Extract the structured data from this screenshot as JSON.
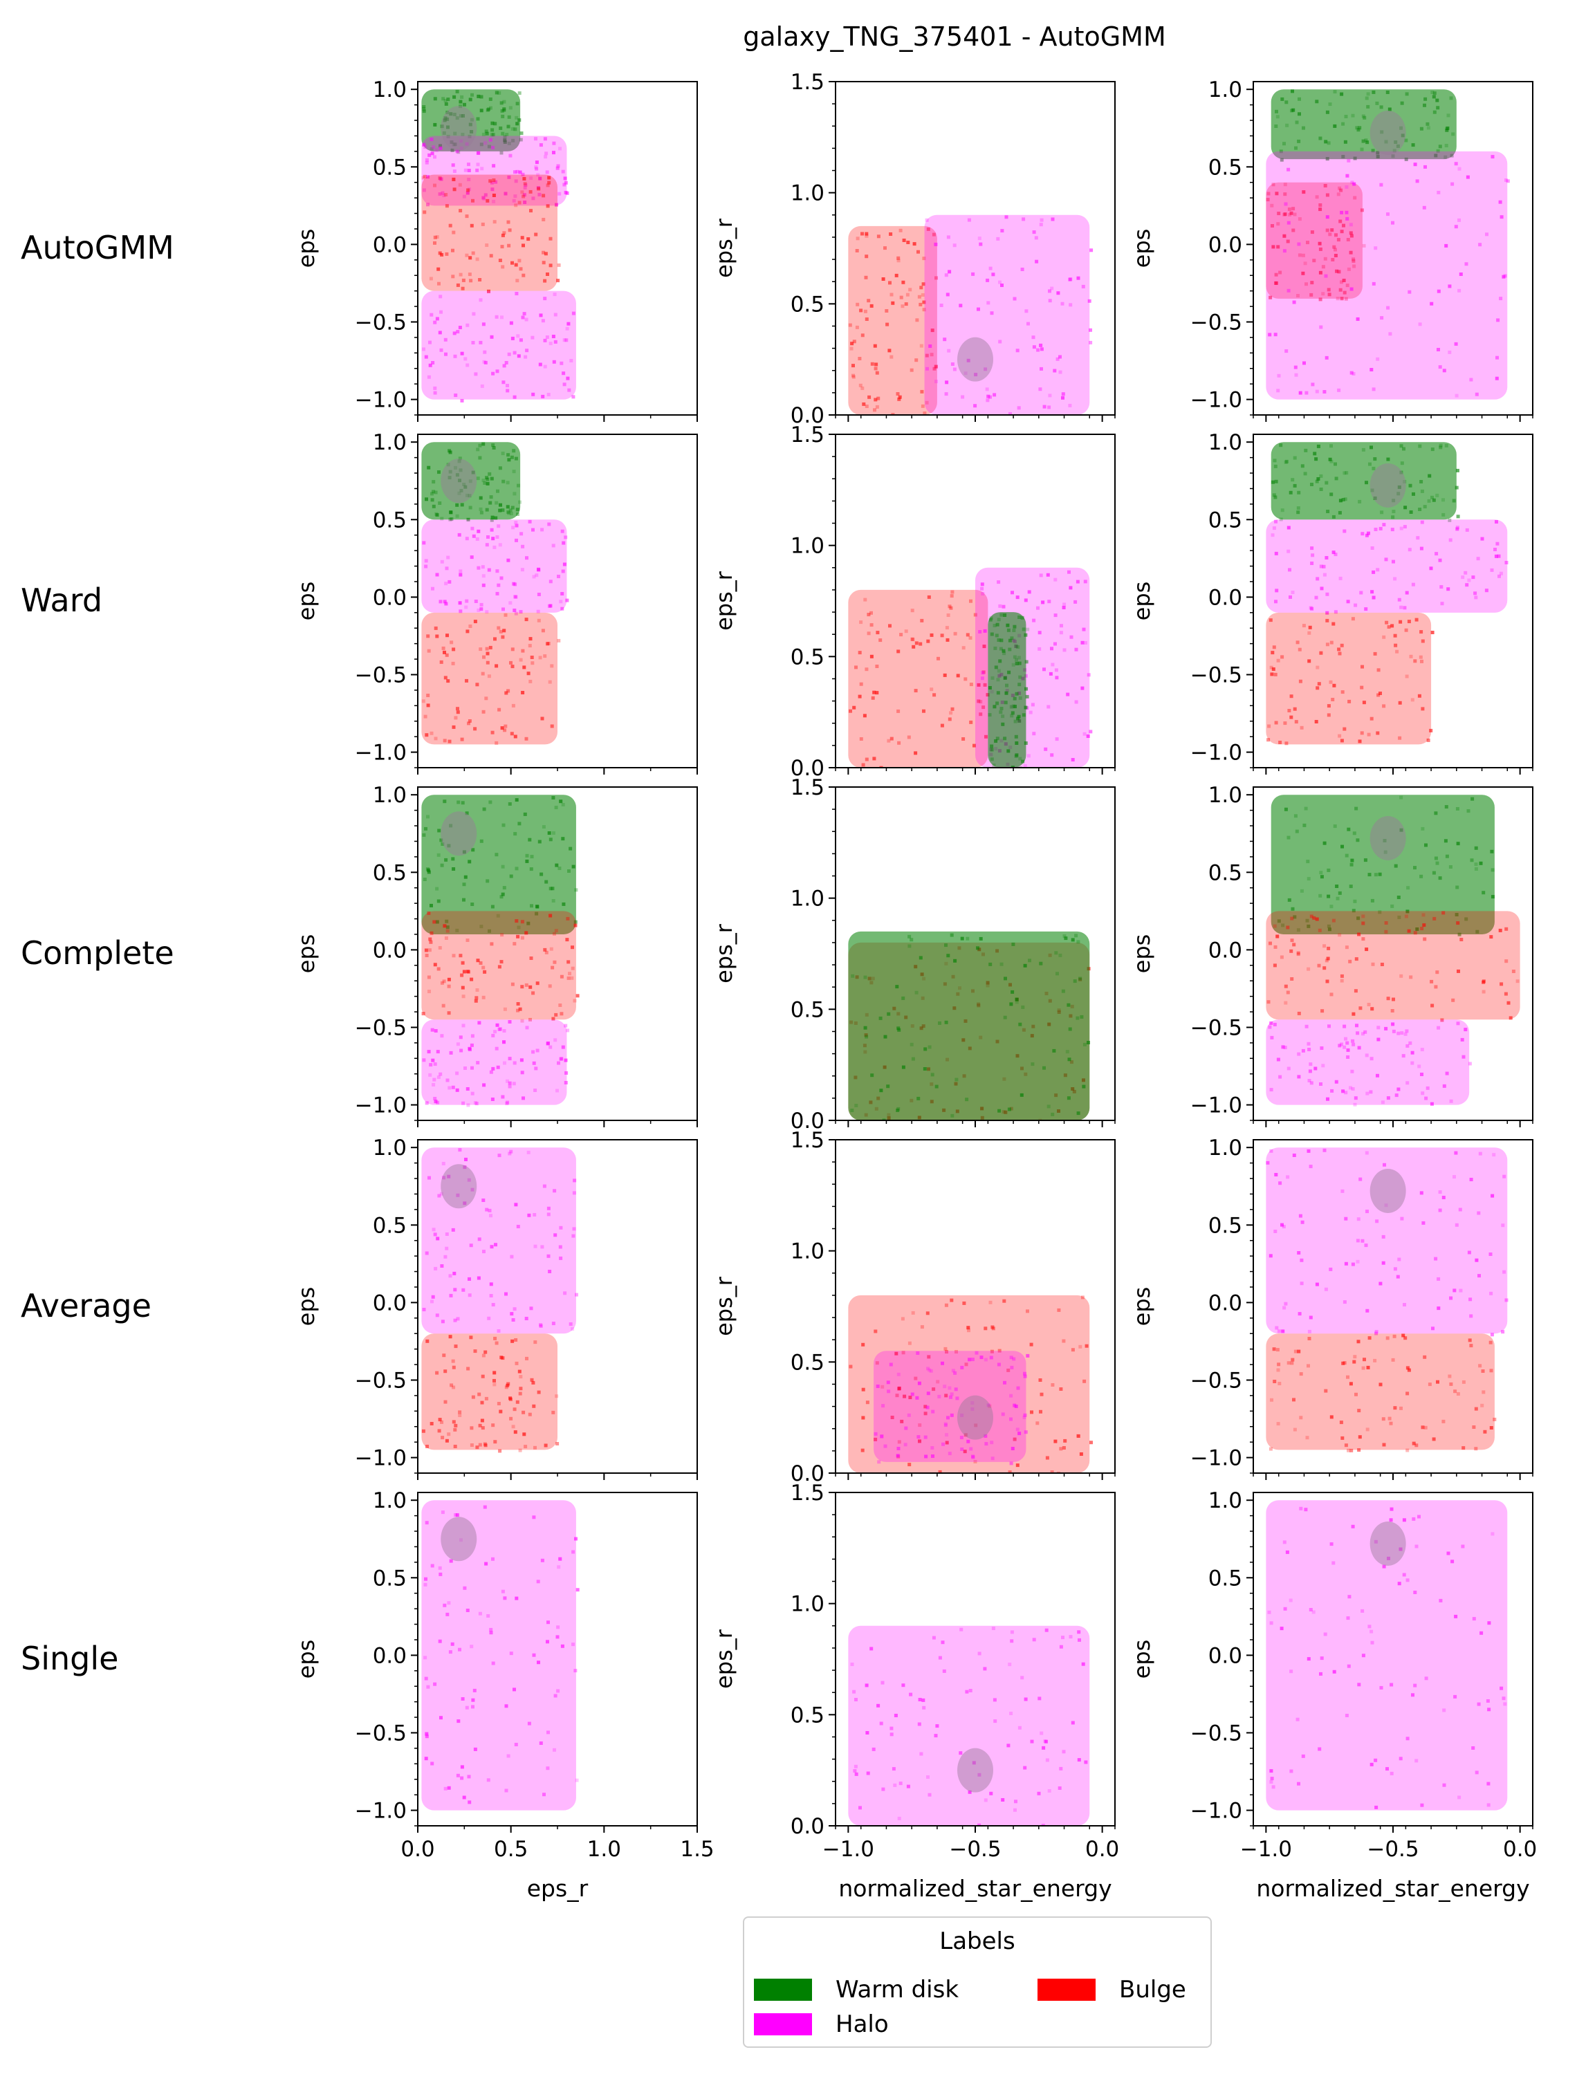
{
  "figure": {
    "title": "galaxy_TNG_375401 - AutoGMM",
    "row_labels": [
      "AutoGMM",
      "Ward",
      "Complete",
      "Average",
      "Single"
    ],
    "columns": [
      {
        "xlabel": "eps_r",
        "ylabel": "eps"
      },
      {
        "xlabel": "normalized_star_energy",
        "ylabel": "eps_r"
      },
      {
        "xlabel": "normalized_star_energy",
        "ylabel": "eps"
      }
    ]
  },
  "legend": {
    "title": "Labels",
    "entries": [
      {
        "label": "Warm disk",
        "color": "#008000"
      },
      {
        "label": "Bulge",
        "color": "#ff0000"
      },
      {
        "label": "Halo",
        "color": "#ff00ff"
      }
    ]
  },
  "colors": {
    "warm_disk": "#008000",
    "halo": "#ff00ff",
    "bulge": "#ff0000",
    "grid_density_overlap": "#9a7a9a"
  },
  "chart_data": {
    "type": "heatmap",
    "title": "galaxy_TNG_375401 - AutoGMM",
    "description_of_axes": {
      "col1": {
        "x": "eps_r",
        "y": "eps",
        "xlim": [
          0.0,
          1.5
        ],
        "ylim": [
          -1.1,
          1.05
        ],
        "xticks": [
          "0.0",
          "0.5",
          "1.0",
          "1.5"
        ],
        "yticks": [
          "-1.0",
          "-0.5",
          "0.0",
          "0.5",
          "1.0"
        ]
      },
      "col2": {
        "x": "normalized_star_energy",
        "y": "eps_r",
        "xlim": [
          -1.05,
          0.05
        ],
        "ylim": [
          0.0,
          1.5
        ],
        "xticks": [
          "-1.0",
          "-0.5",
          "0.0"
        ],
        "yticks": [
          "0.0",
          "0.5",
          "1.0",
          "1.5"
        ]
      },
      "col3": {
        "x": "normalized_star_energy",
        "y": "eps",
        "xlim": [
          -1.05,
          0.05
        ],
        "ylim": [
          -1.1,
          1.05
        ],
        "xticks": [
          "-1.0",
          "-0.5",
          "0.0"
        ],
        "yticks": [
          "-1.0",
          "-0.5",
          "0.0",
          "0.5",
          "1.0"
        ]
      }
    },
    "panels": [
      {
        "row": "AutoGMM",
        "regions": [
          [
            {
              "c": "warm_disk",
              "x": [
                0.02,
                0.55
              ],
              "y": [
                0.6,
                1.0
              ]
            },
            {
              "c": "halo",
              "x": [
                0.02,
                0.8
              ],
              "y": [
                0.25,
                0.7
              ]
            },
            {
              "c": "bulge",
              "x": [
                0.02,
                0.75
              ],
              "y": [
                -0.3,
                0.45
              ]
            },
            {
              "c": "halo",
              "x": [
                0.02,
                0.85
              ],
              "y": [
                -1.0,
                -0.3
              ]
            }
          ],
          [
            {
              "c": "bulge",
              "x": [
                -1.0,
                -0.65
              ],
              "y": [
                0.0,
                0.85
              ]
            },
            {
              "c": "halo",
              "x": [
                -0.7,
                -0.05
              ],
              "y": [
                0.0,
                0.9
              ]
            }
          ],
          [
            {
              "c": "warm_disk",
              "x": [
                -0.98,
                -0.25
              ],
              "y": [
                0.55,
                1.0
              ]
            },
            {
              "c": "bulge",
              "x": [
                -1.0,
                -0.62
              ],
              "y": [
                -0.35,
                0.4
              ]
            },
            {
              "c": "halo",
              "x": [
                -1.0,
                -0.05
              ],
              "y": [
                -1.0,
                0.6
              ]
            }
          ]
        ]
      },
      {
        "row": "Ward",
        "regions": [
          [
            {
              "c": "warm_disk",
              "x": [
                0.02,
                0.55
              ],
              "y": [
                0.5,
                1.0
              ]
            },
            {
              "c": "halo",
              "x": [
                0.02,
                0.8
              ],
              "y": [
                -0.1,
                0.5
              ]
            },
            {
              "c": "bulge",
              "x": [
                0.02,
                0.75
              ],
              "y": [
                -0.95,
                -0.1
              ]
            }
          ],
          [
            {
              "c": "bulge",
              "x": [
                -1.0,
                -0.45
              ],
              "y": [
                0.0,
                0.8
              ]
            },
            {
              "c": "halo",
              "x": [
                -0.5,
                -0.05
              ],
              "y": [
                0.0,
                0.9
              ]
            },
            {
              "c": "warm_disk",
              "x": [
                -0.45,
                -0.3
              ],
              "y": [
                0.0,
                0.7
              ]
            }
          ],
          [
            {
              "c": "warm_disk",
              "x": [
                -0.98,
                -0.25
              ],
              "y": [
                0.5,
                1.0
              ]
            },
            {
              "c": "halo",
              "x": [
                -1.0,
                -0.05
              ],
              "y": [
                -0.1,
                0.5
              ]
            },
            {
              "c": "bulge",
              "x": [
                -1.0,
                -0.35
              ],
              "y": [
                -0.95,
                -0.1
              ]
            }
          ]
        ]
      },
      {
        "row": "Complete",
        "regions": [
          [
            {
              "c": "warm_disk",
              "x": [
                0.02,
                0.85
              ],
              "y": [
                0.1,
                1.0
              ]
            },
            {
              "c": "bulge",
              "x": [
                0.02,
                0.85
              ],
              "y": [
                -0.45,
                0.25
              ]
            },
            {
              "c": "halo",
              "x": [
                0.02,
                0.8
              ],
              "y": [
                -1.0,
                -0.45
              ]
            }
          ],
          [
            {
              "c": "bulge",
              "x": [
                -1.0,
                -0.05
              ],
              "y": [
                0.0,
                0.8
              ]
            },
            {
              "c": "warm_disk",
              "x": [
                -1.0,
                -0.05
              ],
              "y": [
                0.0,
                0.85
              ]
            }
          ],
          [
            {
              "c": "warm_disk",
              "x": [
                -0.98,
                -0.1
              ],
              "y": [
                0.1,
                1.0
              ]
            },
            {
              "c": "bulge",
              "x": [
                -1.0,
                0.0
              ],
              "y": [
                -0.45,
                0.25
              ]
            },
            {
              "c": "halo",
              "x": [
                -1.0,
                -0.2
              ],
              "y": [
                -1.0,
                -0.45
              ]
            }
          ]
        ]
      },
      {
        "row": "Average",
        "regions": [
          [
            {
              "c": "halo",
              "x": [
                0.02,
                0.85
              ],
              "y": [
                -0.2,
                1.0
              ]
            },
            {
              "c": "bulge",
              "x": [
                0.02,
                0.75
              ],
              "y": [
                -0.95,
                -0.2
              ]
            }
          ],
          [
            {
              "c": "bulge",
              "x": [
                -1.0,
                -0.05
              ],
              "y": [
                0.0,
                0.8
              ]
            },
            {
              "c": "halo",
              "x": [
                -0.9,
                -0.3
              ],
              "y": [
                0.05,
                0.55
              ]
            }
          ],
          [
            {
              "c": "halo",
              "x": [
                -1.0,
                -0.05
              ],
              "y": [
                -0.2,
                1.0
              ]
            },
            {
              "c": "bulge",
              "x": [
                -1.0,
                -0.1
              ],
              "y": [
                -0.95,
                -0.2
              ]
            }
          ]
        ]
      },
      {
        "row": "Single",
        "regions": [
          [
            {
              "c": "halo",
              "x": [
                0.02,
                0.85
              ],
              "y": [
                -1.0,
                1.0
              ]
            }
          ],
          [
            {
              "c": "halo",
              "x": [
                -1.0,
                -0.05
              ],
              "y": [
                0.0,
                0.9
              ]
            }
          ],
          [
            {
              "c": "halo",
              "x": [
                -1.0,
                -0.05
              ],
              "y": [
                -1.0,
                1.0
              ]
            }
          ]
        ]
      }
    ]
  }
}
